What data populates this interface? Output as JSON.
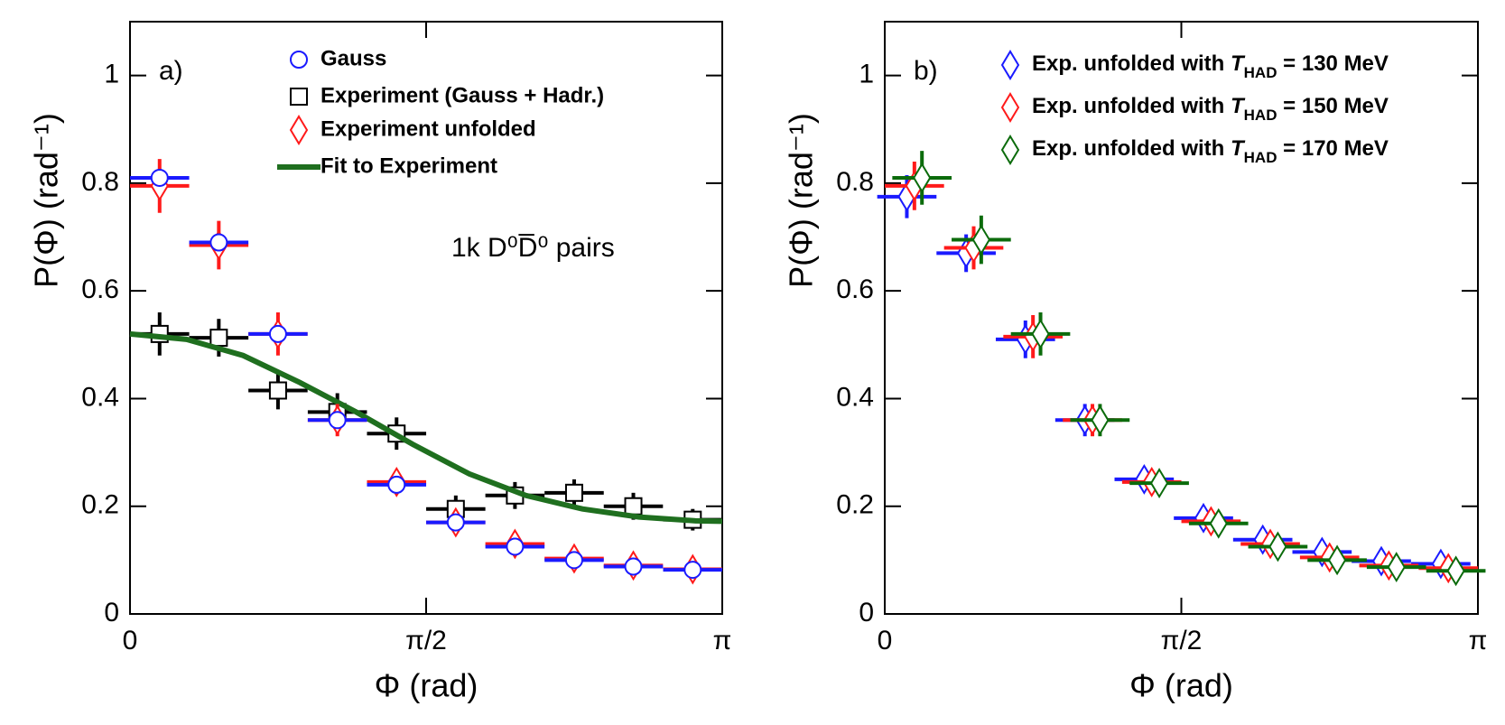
{
  "chart_data": [
    {
      "type": "scatter",
      "panel_label": "a)",
      "annotation": "1k D⁰D̅⁰ pairs",
      "x_label": "Φ (rad)",
      "y_label": "P(Φ) (rad⁻¹)",
      "xlim": [
        0,
        3.14159
      ],
      "ylim": [
        0,
        1.1
      ],
      "xticks": [
        0,
        {
          "value": 1.5708,
          "label": "π/2"
        },
        {
          "value": 3.14159,
          "label": "π"
        }
      ],
      "yticks": [
        0,
        0.2,
        0.4,
        0.6,
        0.8,
        1
      ],
      "series": [
        {
          "name": "Experiment (Gauss + Hadr.)",
          "color": "#000000",
          "marker": "square",
          "xerr": 0.157,
          "x": [
            0.157,
            0.471,
            0.785,
            1.1,
            1.414,
            1.728,
            2.042,
            2.356,
            2.67,
            2.985
          ],
          "values": [
            0.52,
            0.513,
            0.415,
            0.375,
            0.335,
            0.195,
            0.22,
            0.225,
            0.2,
            0.175
          ],
          "errors": [
            0.04,
            0.035,
            0.035,
            0.035,
            0.03,
            0.025,
            0.025,
            0.025,
            0.025,
            0.02
          ]
        },
        {
          "name": "Fit to Experiment",
          "color": "#1f6f1f",
          "marker": "line",
          "x": [
            0,
            0.3,
            0.6,
            0.9,
            1.2,
            1.5,
            1.8,
            2.1,
            2.4,
            2.7,
            3.0,
            3.14159
          ],
          "values": [
            0.52,
            0.51,
            0.48,
            0.43,
            0.375,
            0.315,
            0.26,
            0.22,
            0.195,
            0.18,
            0.173,
            0.172
          ]
        },
        {
          "name": "Experiment unfolded",
          "color": "#ff1a1a",
          "marker": "diamond",
          "xerr": 0.157,
          "x": [
            0.157,
            0.471,
            0.785,
            1.1,
            1.414,
            1.728,
            2.042,
            2.356,
            2.67,
            2.985
          ],
          "values": [
            0.795,
            0.685,
            0.52,
            0.36,
            0.245,
            0.17,
            0.13,
            0.103,
            0.09,
            0.083
          ],
          "errors": [
            0.05,
            0.045,
            0.04,
            0.03,
            0.02,
            0.015,
            0.012,
            0.01,
            0.01,
            0.01
          ]
        },
        {
          "name": "Gauss",
          "color": "#1a1aff",
          "marker": "circle",
          "xerr": 0.157,
          "x": [
            0.157,
            0.471,
            0.785,
            1.1,
            1.414,
            1.728,
            2.042,
            2.356,
            2.67,
            2.985
          ],
          "values": [
            0.81,
            0.69,
            0.52,
            0.36,
            0.24,
            0.17,
            0.125,
            0.1,
            0.088,
            0.082
          ],
          "errors": [
            0,
            0,
            0,
            0,
            0,
            0,
            0,
            0,
            0,
            0
          ]
        }
      ]
    },
    {
      "type": "scatter",
      "panel_label": "b)",
      "x_label": "Φ (rad)",
      "y_label": "P(Φ) (rad⁻¹)",
      "xlim": [
        0,
        3.14159
      ],
      "ylim": [
        0,
        1.1
      ],
      "xticks": [
        0,
        {
          "value": 1.5708,
          "label": "π/2"
        },
        {
          "value": 3.14159,
          "label": "π"
        }
      ],
      "yticks": [
        0,
        0.2,
        0.4,
        0.6,
        0.8,
        1
      ],
      "series": [
        {
          "name": "Exp. unfolded with THAD = 130 MeV",
          "color": "#1a1aff",
          "marker": "diamond",
          "xerr": 0.157,
          "x": [
            0.117,
            0.431,
            0.745,
            1.06,
            1.374,
            1.688,
            2.002,
            2.316,
            2.63,
            2.945
          ],
          "values": [
            0.775,
            0.67,
            0.51,
            0.36,
            0.25,
            0.178,
            0.138,
            0.115,
            0.098,
            0.093
          ],
          "errors": [
            0.04,
            0.035,
            0.035,
            0.03,
            0.02,
            0.015,
            0.012,
            0.01,
            0.01,
            0.01
          ]
        },
        {
          "name": "Exp. unfolded with THAD = 150 MeV",
          "color": "#ff1a1a",
          "marker": "diamond",
          "xerr": 0.157,
          "x": [
            0.157,
            0.471,
            0.785,
            1.1,
            1.414,
            1.728,
            2.042,
            2.356,
            2.67,
            2.985
          ],
          "values": [
            0.795,
            0.68,
            0.515,
            0.36,
            0.245,
            0.172,
            0.13,
            0.105,
            0.09,
            0.085
          ],
          "errors": [
            0.045,
            0.04,
            0.04,
            0.03,
            0.02,
            0.015,
            0.012,
            0.01,
            0.01,
            0.01
          ]
        },
        {
          "name": "Exp. unfolded with THAD = 170 MeV",
          "color": "#0b6b0b",
          "marker": "diamond",
          "xerr": 0.157,
          "x": [
            0.197,
            0.511,
            0.825,
            1.14,
            1.454,
            1.768,
            2.082,
            2.396,
            2.71,
            3.025
          ],
          "values": [
            0.81,
            0.695,
            0.52,
            0.36,
            0.243,
            0.168,
            0.125,
            0.1,
            0.087,
            0.08
          ],
          "errors": [
            0.05,
            0.045,
            0.04,
            0.03,
            0.02,
            0.015,
            0.012,
            0.01,
            0.01,
            0.01
          ]
        }
      ]
    }
  ]
}
